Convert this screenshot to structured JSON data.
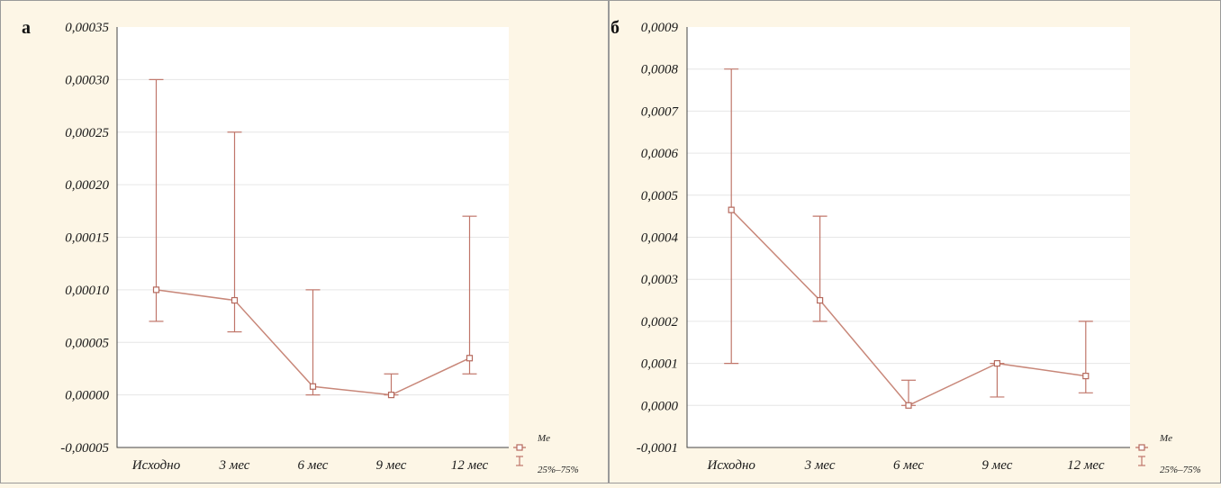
{
  "chart_data": [
    {
      "type": "line",
      "panel_label": "а",
      "categories": [
        "Исходно",
        "3 мес",
        "6 мес",
        "9 мес",
        "12 мес"
      ],
      "series": [
        {
          "values": [
            0.0001,
            9e-05,
            8e-06,
            0.0,
            3.5e-05
          ],
          "q25": [
            7e-05,
            6e-05,
            0.0,
            0.0,
            2e-05
          ],
          "q75": [
            0.0003,
            0.00025,
            0.0001,
            2e-05,
            0.00017
          ]
        }
      ],
      "ylim": [
        -5e-05,
        0.00035
      ],
      "yticks": [
        -5e-05,
        0.0,
        5e-05,
        0.0001,
        0.00015,
        0.0002,
        0.00025,
        0.0003,
        0.00035
      ],
      "ytick_labels": [
        "-0,00005",
        "0,00000",
        "0,00005",
        "0,00010",
        "0,00015",
        "0,00020",
        "0,00025",
        "0,00030",
        "0,00035"
      ],
      "grid": true,
      "legend": {
        "position": "bottom-right",
        "entries": [
          "Me",
          "25%–75%"
        ]
      }
    },
    {
      "type": "line",
      "panel_label": "б",
      "categories": [
        "Исходно",
        "3 мес",
        "6 мес",
        "9 мес",
        "12 мес"
      ],
      "series": [
        {
          "values": [
            0.000465,
            0.00025,
            0.0,
            0.0001,
            7e-05
          ],
          "q25": [
            0.0001,
            0.0002,
            0.0,
            2e-05,
            3e-05
          ],
          "q75": [
            0.0008,
            0.00045,
            6e-05,
            0.0001,
            0.0002
          ]
        }
      ],
      "ylim": [
        -0.0001,
        0.0009
      ],
      "yticks": [
        -0.0001,
        0.0,
        0.0001,
        0.0002,
        0.0003,
        0.0004,
        0.0005,
        0.0006,
        0.0007,
        0.0008,
        0.0009
      ],
      "ytick_labels": [
        "-0,0001",
        "0,0000",
        "0,0001",
        "0,0002",
        "0,0003",
        "0,0004",
        "0,0005",
        "0,0006",
        "0,0007",
        "0,0008",
        "0,0009"
      ],
      "grid": true,
      "legend": {
        "position": "bottom-right",
        "entries": [
          "Me",
          "25%–75%"
        ]
      }
    }
  ],
  "colors": {
    "background": "#fdf6e6",
    "plot_background": "#ffffff",
    "series_line": "#c88779",
    "whisker": "#c0766a",
    "marker_edge": "#b5695d",
    "grid": "#e6e6e6"
  }
}
